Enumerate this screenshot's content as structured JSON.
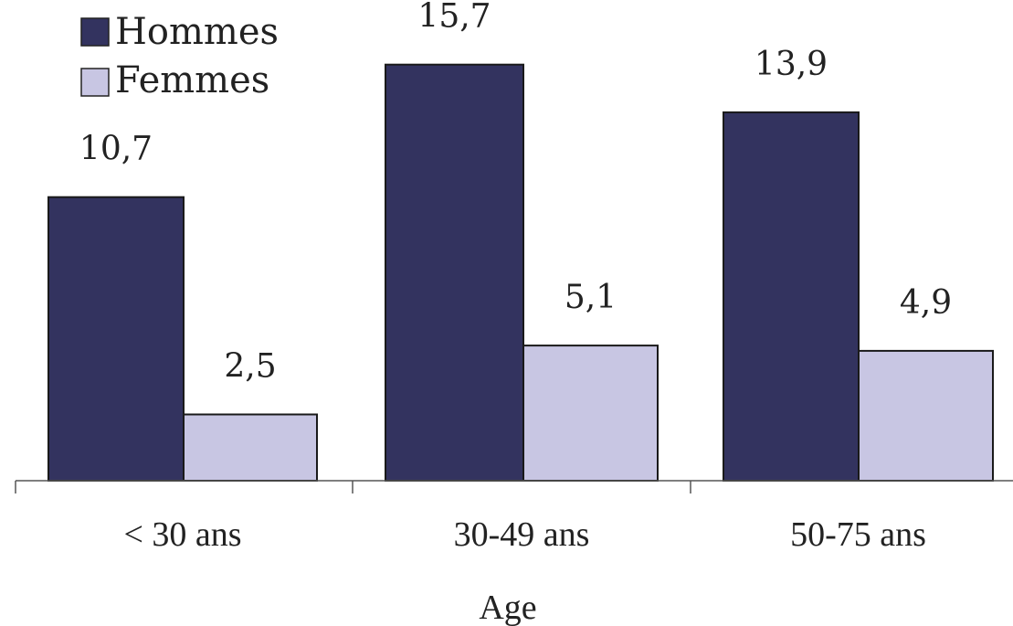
{
  "chart_data": {
    "type": "bar",
    "categories": [
      "< 30 ans",
      "30-49 ans",
      "50-75 ans"
    ],
    "series": [
      {
        "name": "Hommes",
        "values": [
          10.7,
          15.7,
          13.9
        ],
        "labels": [
          "10,7",
          "15,7",
          "13,9"
        ],
        "color": "#33335f"
      },
      {
        "name": "Femmes",
        "values": [
          2.5,
          5.1,
          4.9
        ],
        "labels": [
          "2,5",
          "5,1",
          "4,9"
        ],
        "color": "#c8c6e3"
      }
    ],
    "title": "",
    "xlabel": "Age",
    "ylabel": "",
    "ylim": [
      0,
      18
    ],
    "grid": false,
    "legend_position": "top-left"
  }
}
